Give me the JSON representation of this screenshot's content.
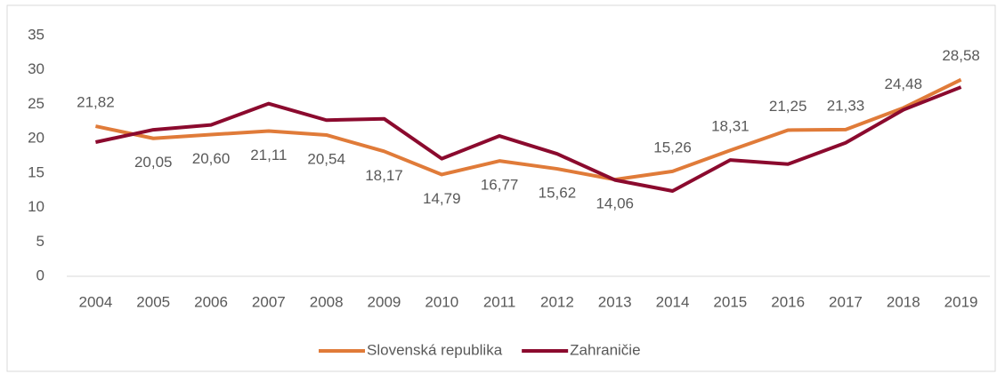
{
  "chart_data": {
    "type": "line",
    "x": [
      "2004",
      "2005",
      "2006",
      "2007",
      "2008",
      "2009",
      "2010",
      "2011",
      "2012",
      "2013",
      "2014",
      "2015",
      "2016",
      "2017",
      "2018",
      "2019"
    ],
    "series": [
      {
        "name": "Slovenská republika",
        "color": "#e07b39",
        "values": [
          21.82,
          20.05,
          20.6,
          21.11,
          20.54,
          18.17,
          14.79,
          16.77,
          15.62,
          14.06,
          15.26,
          18.31,
          21.25,
          21.33,
          24.48,
          28.58
        ],
        "value_labels": [
          "21,82",
          "20,05",
          "20,60",
          "21,11",
          "20,54",
          "18,17",
          "14,79",
          "16,77",
          "15,62",
          "14,06",
          "15,26",
          "18,31",
          "21,25",
          "21,33",
          "24,48",
          "28,58"
        ]
      },
      {
        "name": "Zahraničie",
        "color": "#8b0a2e",
        "values": [
          19.5,
          21.3,
          22.0,
          25.1,
          22.7,
          22.9,
          17.1,
          20.4,
          17.8,
          14.0,
          12.4,
          16.9,
          16.3,
          19.4,
          24.2,
          27.5
        ]
      }
    ],
    "ylim": [
      0,
      35
    ],
    "yticks": [
      0,
      5,
      10,
      15,
      20,
      25,
      30,
      35
    ],
    "grid": false,
    "legend": "bottom"
  }
}
